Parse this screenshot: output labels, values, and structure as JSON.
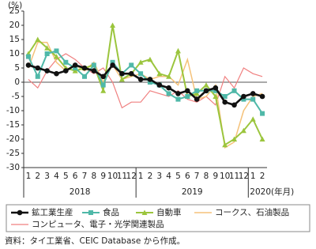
{
  "chart_data": {
    "type": "line",
    "y_unit": "(%)",
    "x_unit": "(年月)",
    "categories": [
      "1",
      "2",
      "3",
      "4",
      "5",
      "6",
      "7",
      "8",
      "9",
      "10",
      "11",
      "12",
      "1",
      "2",
      "3",
      "4",
      "5",
      "6",
      "7",
      "8",
      "9",
      "10",
      "11",
      "12",
      "1",
      "2"
    ],
    "x_groups": [
      "2018",
      "2019",
      "2020"
    ],
    "ylim": [
      -30,
      25
    ],
    "yticks": [
      -30,
      -25,
      -20,
      -15,
      -10,
      -5,
      0,
      5,
      10,
      15,
      20,
      25
    ],
    "series": [
      {
        "name": "鉱工業生産",
        "color": "#111111",
        "marker": "circle",
        "width": 2.6,
        "values": [
          6,
          5,
          4,
          3,
          4,
          6,
          5,
          4,
          2,
          6,
          3,
          3,
          1,
          1,
          -1,
          -2,
          -4,
          -3,
          -6,
          -3,
          -2,
          -7,
          -8,
          -5,
          -4,
          -5
        ]
      },
      {
        "name": "食品",
        "color": "#4fb8a8",
        "marker": "square",
        "width": 2,
        "values": [
          9,
          2,
          10,
          11,
          7,
          5,
          2,
          6,
          -1,
          7,
          3,
          6,
          3,
          0,
          -1,
          -4,
          -6,
          -5,
          -3,
          -3,
          -3,
          -5,
          -3,
          -6,
          -6,
          -11
        ]
      },
      {
        "name": "自動車",
        "color": "#9bc53d",
        "marker": "triangle",
        "width": 2,
        "values": [
          10,
          15,
          12,
          9,
          5,
          4,
          5,
          6,
          -3,
          20,
          1,
          3,
          7,
          8,
          3,
          2,
          11,
          -5,
          -4,
          -1,
          -5,
          -22,
          -20,
          -17,
          -13,
          -20
        ]
      },
      {
        "name": "コークス、石油製品",
        "color": "#f5c27a",
        "marker": "none",
        "width": 1.5,
        "values": [
          5,
          14,
          14,
          7,
          4,
          6,
          4,
          7,
          0,
          6,
          1,
          2,
          3,
          1,
          2,
          2,
          -1,
          8,
          -6,
          -5,
          -1,
          -23,
          -21,
          -10,
          -5,
          -4
        ]
      },
      {
        "name": "コンピュータ、電子・光学関連製品",
        "color": "#f08080",
        "marker": "none",
        "width": 1.2,
        "values": [
          1,
          -2,
          4,
          8,
          10,
          8,
          5,
          3,
          5,
          0,
          -9,
          -7,
          -7,
          -3,
          -4,
          -5,
          -3,
          -6,
          -7,
          -5,
          -8,
          2,
          -2,
          5,
          3,
          2
        ]
      }
    ],
    "source": "資料：タイ工業省、CEIC Database から作成。"
  }
}
